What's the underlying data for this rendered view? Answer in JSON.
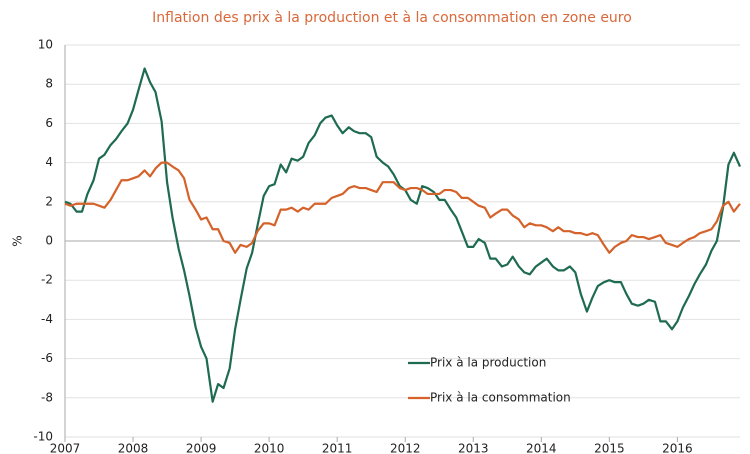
{
  "chart_data": {
    "type": "line",
    "title": "Inflation des prix à la production et à la consommation en zone euro",
    "y_label": "%",
    "x": [
      2007,
      2007.08,
      2007.17,
      2007.25,
      2007.33,
      2007.42,
      2007.5,
      2007.58,
      2007.67,
      2007.75,
      2007.83,
      2007.92,
      2008,
      2008.08,
      2008.17,
      2008.25,
      2008.33,
      2008.42,
      2008.5,
      2008.58,
      2008.67,
      2008.75,
      2008.83,
      2008.92,
      2009,
      2009.08,
      2009.17,
      2009.25,
      2009.33,
      2009.42,
      2009.5,
      2009.58,
      2009.67,
      2009.75,
      2009.83,
      2009.92,
      2010,
      2010.08,
      2010.17,
      2010.25,
      2010.33,
      2010.42,
      2010.5,
      2010.58,
      2010.67,
      2010.75,
      2010.83,
      2010.92,
      2011,
      2011.08,
      2011.17,
      2011.25,
      2011.33,
      2011.42,
      2011.5,
      2011.58,
      2011.67,
      2011.75,
      2011.83,
      2011.92,
      2012,
      2012.08,
      2012.17,
      2012.25,
      2012.33,
      2012.42,
      2012.5,
      2012.58,
      2012.67,
      2012.75,
      2012.83,
      2012.92,
      2013,
      2013.08,
      2013.17,
      2013.25,
      2013.33,
      2013.42,
      2013.5,
      2013.58,
      2013.67,
      2013.75,
      2013.83,
      2013.92,
      2014,
      2014.08,
      2014.17,
      2014.25,
      2014.33,
      2014.42,
      2014.5,
      2014.58,
      2014.67,
      2014.75,
      2014.83,
      2014.92,
      2015,
      2015.08,
      2015.17,
      2015.25,
      2015.33,
      2015.42,
      2015.5,
      2015.58,
      2015.67,
      2015.75,
      2015.83,
      2015.92,
      2016,
      2016.08,
      2016.17,
      2016.25,
      2016.33,
      2016.42,
      2016.5,
      2016.58,
      2016.67,
      2016.75,
      2016.83,
      2016.92
    ],
    "series": [
      {
        "name": "Prix à la production",
        "color": "#1e6b52",
        "values": [
          2.0,
          1.9,
          1.5,
          1.5,
          2.4,
          3.1,
          4.2,
          4.4,
          4.9,
          5.2,
          5.6,
          6.0,
          6.7,
          7.7,
          8.8,
          8.1,
          7.6,
          6.1,
          3.0,
          1.2,
          -0.4,
          -1.5,
          -2.8,
          -4.4,
          -5.4,
          -6.0,
          -8.2,
          -7.3,
          -7.5,
          -6.5,
          -4.5,
          -3.0,
          -1.4,
          -0.6,
          0.8,
          2.3,
          2.8,
          2.9,
          3.9,
          3.5,
          4.2,
          4.1,
          4.3,
          5.0,
          5.4,
          6.0,
          6.3,
          6.4,
          5.9,
          5.5,
          5.8,
          5.6,
          5.5,
          5.5,
          5.3,
          4.3,
          4.0,
          3.8,
          3.4,
          2.8,
          2.6,
          2.1,
          1.9,
          2.8,
          2.7,
          2.5,
          2.1,
          2.1,
          1.6,
          1.2,
          0.5,
          -0.3,
          -0.3,
          0.1,
          -0.1,
          -0.9,
          -0.9,
          -1.3,
          -1.2,
          -0.8,
          -1.3,
          -1.6,
          -1.7,
          -1.3,
          -1.1,
          -0.9,
          -1.3,
          -1.5,
          -1.5,
          -1.3,
          -1.6,
          -2.7,
          -3.6,
          -2.9,
          -2.3,
          -2.1,
          -2.0,
          -2.1,
          -2.1,
          -2.7,
          -3.2,
          -3.3,
          -3.2,
          -3.0,
          -3.1,
          -4.1,
          -4.1,
          -4.5,
          -4.1,
          -3.4,
          -2.8,
          -2.2,
          -1.7,
          -1.2,
          -0.5,
          0.0,
          1.7,
          3.9,
          4.5,
          3.8
        ]
      },
      {
        "name": "Prix à la consommation",
        "color": "#d4622a",
        "values": [
          1.9,
          1.8,
          1.9,
          1.9,
          1.9,
          1.9,
          1.8,
          1.7,
          2.1,
          2.6,
          3.1,
          3.1,
          3.2,
          3.3,
          3.6,
          3.3,
          3.7,
          4.0,
          4.0,
          3.8,
          3.6,
          3.2,
          2.1,
          1.6,
          1.1,
          1.2,
          0.6,
          0.6,
          0.0,
          -0.1,
          -0.6,
          -0.2,
          -0.3,
          -0.1,
          0.5,
          0.9,
          0.9,
          0.8,
          1.6,
          1.6,
          1.7,
          1.5,
          1.7,
          1.6,
          1.9,
          1.9,
          1.9,
          2.2,
          2.3,
          2.4,
          2.7,
          2.8,
          2.7,
          2.7,
          2.6,
          2.5,
          3.0,
          3.0,
          3.0,
          2.7,
          2.6,
          2.7,
          2.7,
          2.6,
          2.4,
          2.4,
          2.4,
          2.6,
          2.6,
          2.5,
          2.2,
          2.2,
          2.0,
          1.8,
          1.7,
          1.2,
          1.4,
          1.6,
          1.6,
          1.3,
          1.1,
          0.7,
          0.9,
          0.8,
          0.8,
          0.7,
          0.5,
          0.7,
          0.5,
          0.5,
          0.4,
          0.4,
          0.3,
          0.4,
          0.3,
          -0.2,
          -0.6,
          -0.3,
          -0.1,
          0.0,
          0.3,
          0.2,
          0.2,
          0.1,
          0.2,
          0.3,
          -0.1,
          -0.2,
          -0.3,
          -0.1,
          0.1,
          0.2,
          0.4,
          0.5,
          0.6,
          1.0,
          1.8,
          2.0,
          1.5,
          1.9
        ]
      }
    ],
    "xlim": [
      2007,
      2016.92
    ],
    "xticks": [
      2007,
      2008,
      2009,
      2010,
      2011,
      2012,
      2013,
      2014,
      2015,
      2016
    ],
    "ylim": [
      -10,
      10
    ],
    "yticks": [
      -10,
      -8,
      -6,
      -4,
      -2,
      0,
      2,
      4,
      6,
      8,
      10
    ],
    "grid": true,
    "legend": "lower center"
  }
}
